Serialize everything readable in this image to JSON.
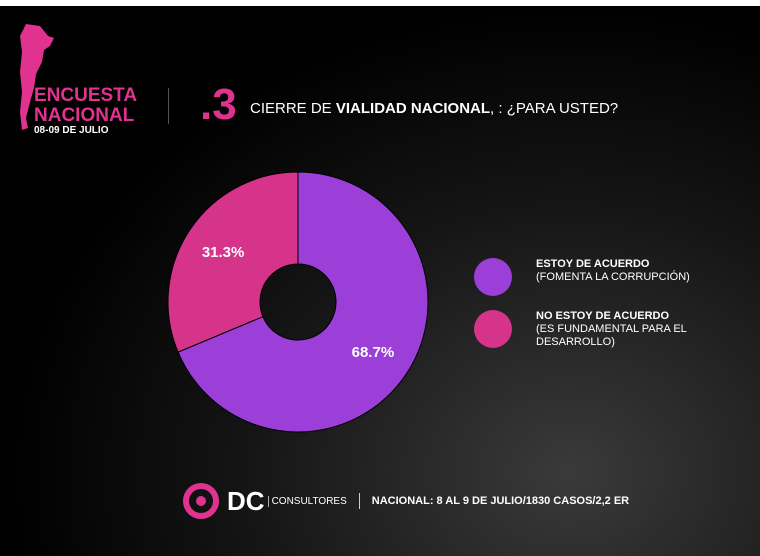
{
  "header": {
    "survey_line1": "ENCUESTA",
    "survey_line2": "NACIONAL",
    "dates": "08-09 DE JULIO",
    "question_number": ".3",
    "question_pre": "CIERRE DE ",
    "question_bold": "VIALIDAD NACIONAL",
    "question_post": ", : ¿PARA USTED?"
  },
  "chart_data": {
    "type": "pie",
    "donut": true,
    "categories": [
      "ESTOY DE ACUERDO (FOMENTA LA CORRUPCIÓN)",
      "NO ESTOY DE ACUERDO (ES FUNDAMENTAL PARA EL DESARROLLO)"
    ],
    "values": [
      68.7,
      31.3
    ],
    "labels": [
      "68.7%",
      "31.3%"
    ],
    "colors": [
      "#9b3fd8",
      "#d6338a"
    ],
    "legend_placement": "right"
  },
  "legend": [
    {
      "title": "ESTOY DE ACUERDO",
      "sub": "(FOMENTA LA CORRUPCIÓN)",
      "color": "#9b3fd8"
    },
    {
      "title": "NO ESTOY DE ACUERDO",
      "sub": "(ES FUNDAMENTAL PARA EL DESARROLLO)",
      "color": "#d6338a"
    }
  ],
  "footer": {
    "brand": "DC",
    "brand_sub": "CONSULTORES",
    "note": "NACIONAL: 8 AL 9 DE JULIO/1830 CASOS/2,2 ER"
  },
  "colors": {
    "accent": "#e0338f"
  }
}
